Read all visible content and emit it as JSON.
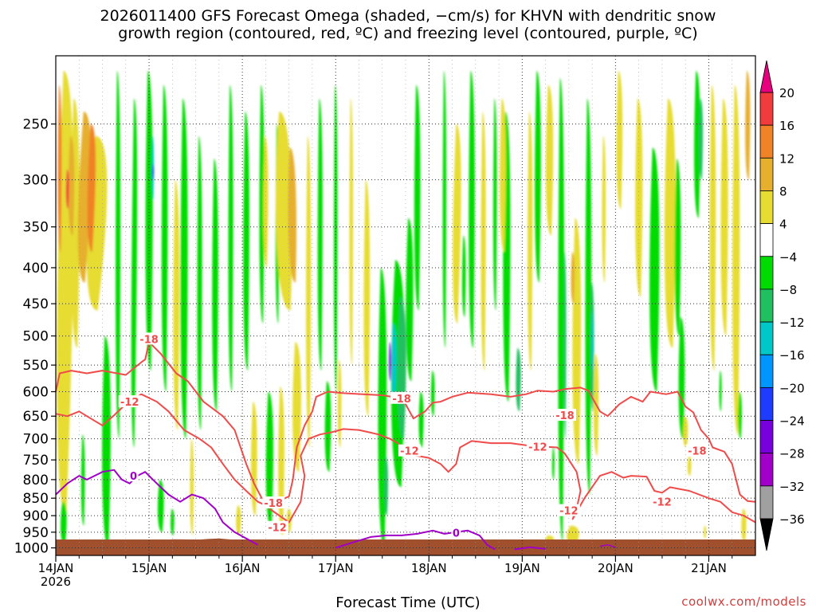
{
  "title_line1": "2026011400 GFS Forecast Omega (shaded, −cm/s) for KHVN with dendritic snow",
  "title_line2": "growth region (contoured, red, ºC) and freezing level (contoured, purple, ºC)",
  "credit": "coolwx.com/models",
  "chart_data": {
    "type": "heatmap",
    "xlabel": "Forecast Time (UTC)",
    "ylabel": "",
    "x_ticks": [
      "14JAN\n2026",
      "15JAN",
      "16JAN",
      "17JAN",
      "18JAN",
      "19JAN",
      "20JAN",
      "21JAN"
    ],
    "x_range_hours": [
      0,
      180
    ],
    "y_axis": "pressure (hPa), inverted",
    "y_ticks": [
      250,
      300,
      350,
      400,
      450,
      500,
      550,
      600,
      650,
      700,
      750,
      800,
      850,
      900,
      950,
      1000
    ],
    "y_range": [
      200,
      1025
    ],
    "colorbar": {
      "labels": [
        "20",
        "16",
        "12",
        "8",
        "4",
        "−4",
        "−8",
        "−12",
        "−16",
        "−20",
        "−24",
        "−28",
        "−32",
        "−36"
      ],
      "levels": [
        20,
        16,
        12,
        8,
        4,
        -4,
        -8,
        -12,
        -16,
        -20,
        -24,
        -28,
        -32,
        -36
      ],
      "colors": {
        "above_20": "#e6007e",
        "16_20": "#f03c3c",
        "12_16": "#f08228",
        "8_12": "#e6af2d",
        "4_8": "#e6dc32",
        "-4_4": "#ffffff",
        "-8_-4": "#00dc00",
        "-12_-8": "#20c060",
        "-16_-12": "#00c8c8",
        "-20_-16": "#0096ff",
        "-24_-20": "#1e3cff",
        "-28_-24": "#7800dc",
        "-32_-28": "#a000c8",
        "-36_-32": "#a0a0a0",
        "below_-36": "#000000"
      }
    },
    "contours": [
      {
        "label": "-18",
        "color": "#f04b4b"
      },
      {
        "label": "-12",
        "color": "#f04b4b"
      },
      {
        "label": "0",
        "color": "#a000c8"
      }
    ],
    "ground_color": "#a0502d",
    "grid": true
  }
}
